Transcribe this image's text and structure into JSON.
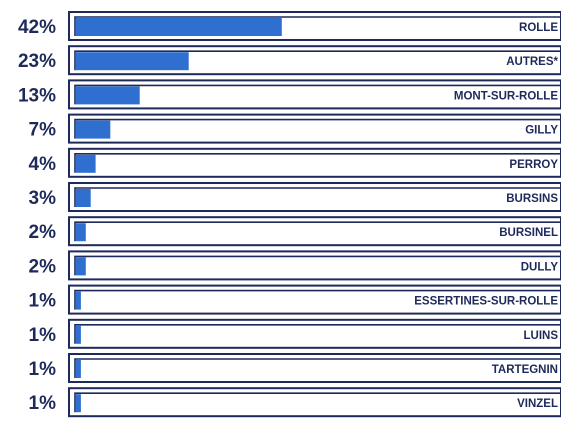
{
  "chart_data": {
    "type": "bar",
    "orientation": "horizontal",
    "categories": [
      "ROLLE",
      "AUTRES*",
      "MONT-SUR-ROLLE",
      "GILLY",
      "PERROY",
      "BURSINS",
      "BURSINEL",
      "DULLY",
      "ESSERTINES-SUR-ROLLE",
      "LUINS",
      "TARTEGNIN",
      "VINZEL"
    ],
    "values": [
      42,
      23,
      13,
      7,
      4,
      3,
      2,
      2,
      1,
      1,
      1,
      1
    ],
    "value_labels": [
      "42%",
      "23%",
      "13%",
      "7%",
      "4%",
      "3%",
      "2%",
      "2%",
      "1%",
      "1%",
      "1%",
      "1%"
    ],
    "unit": "%",
    "xlim": [
      0,
      100
    ],
    "grid": false,
    "colors": {
      "bar": "#2f6fd0",
      "frame": "#1e2a5a",
      "track": "#ffffff",
      "text": "#1e2a5a"
    }
  }
}
